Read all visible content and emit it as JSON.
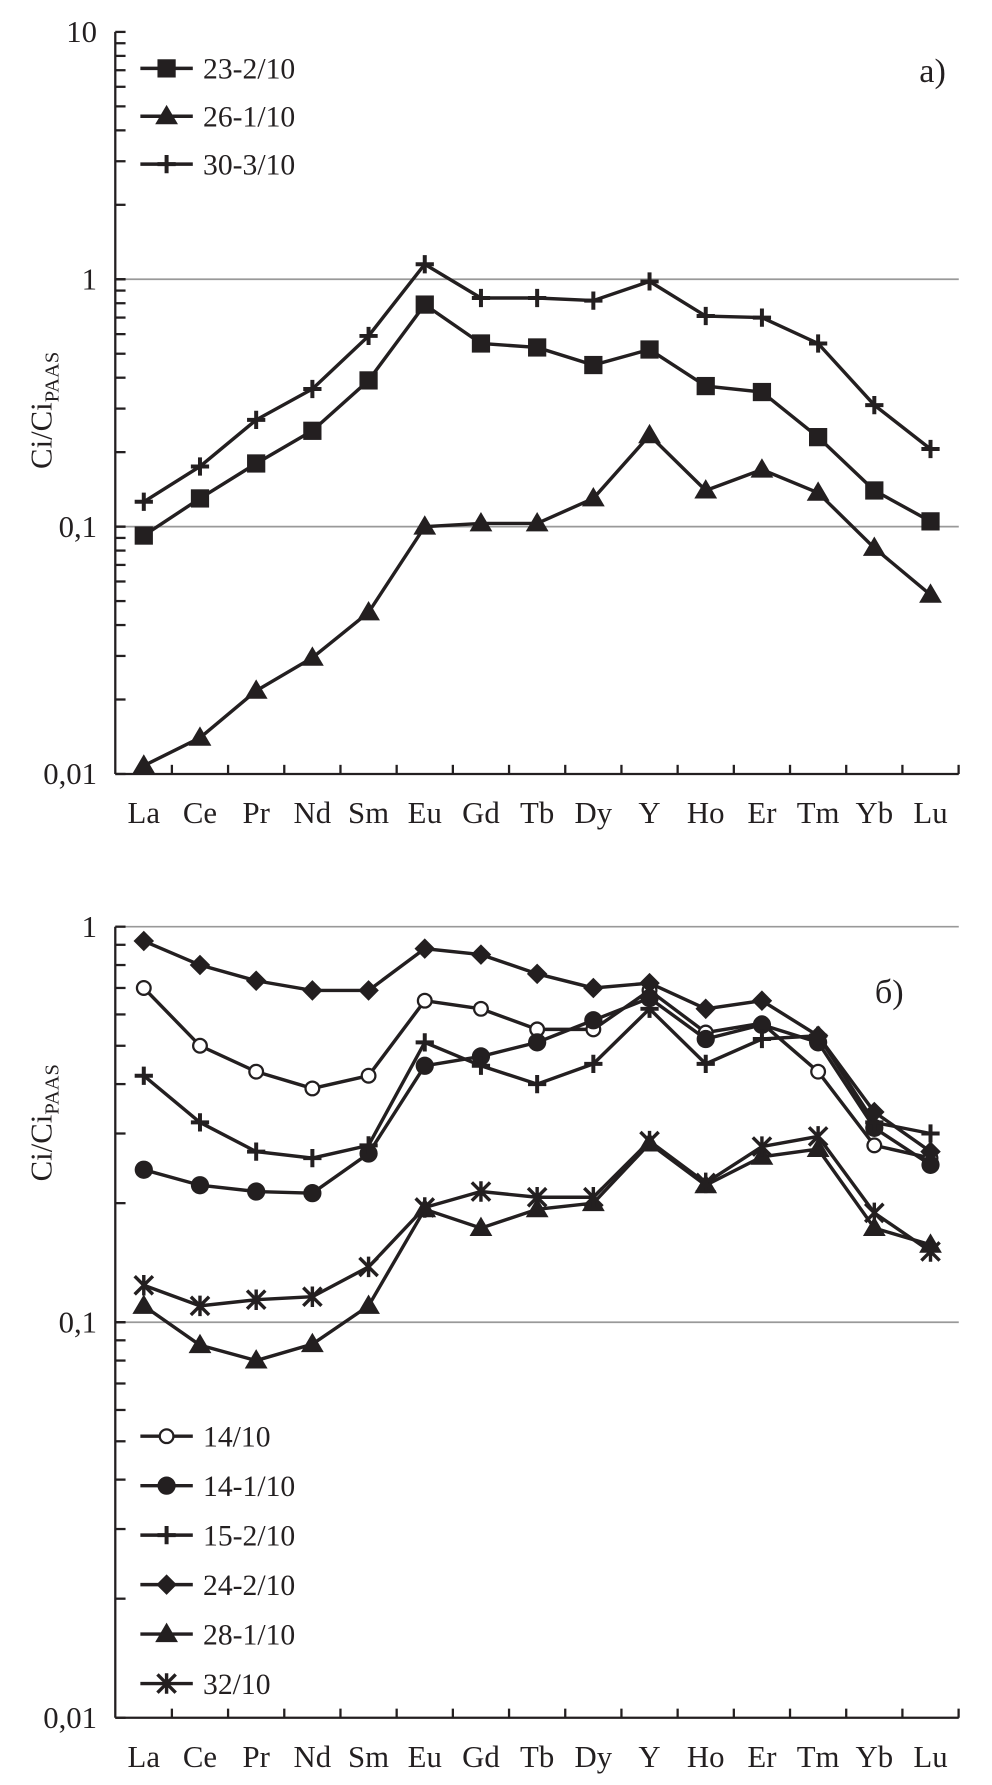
{
  "chart_data": [
    {
      "type": "line",
      "panel_label": "a)",
      "ylabel": "Ci/Ci",
      "ylabel_sub": "PAAS",
      "yscale": "log",
      "ylim": [
        0.01,
        10
      ],
      "yticks": [
        {
          "v": 10,
          "label": "10"
        },
        {
          "v": 1,
          "label": "1"
        },
        {
          "v": 0.1,
          "label": "0,1"
        },
        {
          "v": 0.01,
          "label": "0,01"
        }
      ],
      "gridlines": [
        1,
        0.1
      ],
      "legend_position": "top-left",
      "categories": [
        "La",
        "Ce",
        "Pr",
        "Nd",
        "Sm",
        "Eu",
        "Gd",
        "Tb",
        "Dy",
        "Y",
        "Ho",
        "Er",
        "Tm",
        "Yb",
        "Lu"
      ],
      "series": [
        {
          "name": "23-2/10",
          "marker": "square",
          "values": [
            0.092,
            0.13,
            0.18,
            0.244,
            0.39,
            0.79,
            0.55,
            0.53,
            0.45,
            0.52,
            0.37,
            0.35,
            0.23,
            0.14,
            0.105
          ]
        },
        {
          "name": "26-1/10",
          "marker": "triangle",
          "values": [
            0.0108,
            0.014,
            0.0217,
            0.0295,
            0.045,
            0.1,
            0.103,
            0.103,
            0.13,
            0.234,
            0.14,
            0.17,
            0.137,
            0.082,
            0.053
          ]
        },
        {
          "name": "30-3/10",
          "marker": "plus",
          "values": [
            0.126,
            0.175,
            0.27,
            0.36,
            0.59,
            1.15,
            0.84,
            0.84,
            0.82,
            0.98,
            0.71,
            0.7,
            0.55,
            0.31,
            0.206
          ]
        }
      ]
    },
    {
      "type": "line",
      "panel_label": "б)",
      "ylabel": "Ci/Ci",
      "ylabel_sub": "PAAS",
      "yscale": "log",
      "ylim": [
        0.01,
        1
      ],
      "yticks": [
        {
          "v": 1,
          "label": "1"
        },
        {
          "v": 0.1,
          "label": "0,1"
        },
        {
          "v": 0.01,
          "label": "0,01"
        }
      ],
      "gridlines": [
        1,
        0.1
      ],
      "legend_position": "bottom-left",
      "categories": [
        "La",
        "Ce",
        "Pr",
        "Nd",
        "Sm",
        "Eu",
        "Gd",
        "Tb",
        "Dy",
        "Y",
        "Ho",
        "Er",
        "Tm",
        "Yb",
        "Lu"
      ],
      "series": [
        {
          "name": "14/10",
          "marker": "open-circle",
          "values": [
            0.7,
            0.5,
            0.43,
            0.39,
            0.42,
            0.65,
            0.62,
            0.55,
            0.55,
            0.69,
            0.54,
            0.57,
            0.43,
            0.28,
            0.26
          ]
        },
        {
          "name": "14-1/10",
          "marker": "circle",
          "values": [
            0.243,
            0.222,
            0.214,
            0.212,
            0.267,
            0.445,
            0.47,
            0.51,
            0.58,
            0.66,
            0.52,
            0.565,
            0.51,
            0.31,
            0.25
          ]
        },
        {
          "name": "15-2/10",
          "marker": "plus",
          "values": [
            0.42,
            0.32,
            0.27,
            0.26,
            0.28,
            0.51,
            0.445,
            0.4,
            0.45,
            0.62,
            0.45,
            0.52,
            0.53,
            0.32,
            0.3
          ]
        },
        {
          "name": "24-2/10",
          "marker": "diamond",
          "values": [
            0.92,
            0.8,
            0.73,
            0.69,
            0.69,
            0.88,
            0.85,
            0.76,
            0.7,
            0.72,
            0.62,
            0.65,
            0.53,
            0.34,
            0.27
          ]
        },
        {
          "name": "28-1/10",
          "marker": "triangle",
          "values": [
            0.11,
            0.0875,
            0.08,
            0.088,
            0.11,
            0.193,
            0.173,
            0.193,
            0.2,
            0.283,
            0.222,
            0.262,
            0.274,
            0.173,
            0.157
          ]
        },
        {
          "name": "32/10",
          "marker": "asterisk",
          "values": [
            0.124,
            0.11,
            0.114,
            0.116,
            0.138,
            0.195,
            0.214,
            0.207,
            0.207,
            0.287,
            0.225,
            0.278,
            0.295,
            0.189,
            0.151
          ]
        }
      ]
    }
  ]
}
